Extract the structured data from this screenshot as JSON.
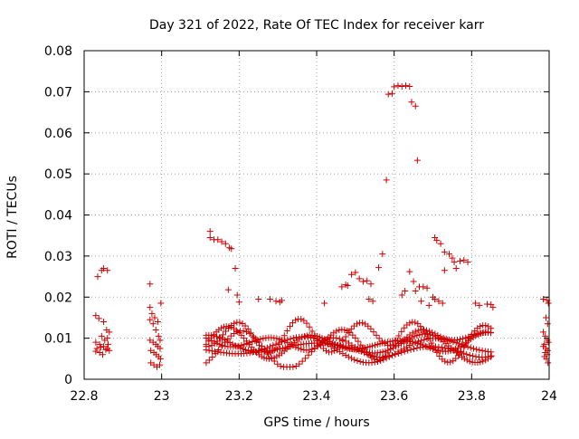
{
  "chart_data": {
    "type": "scatter",
    "title": "Day 321 of 2022, Rate Of TEC Index for receiver karr",
    "xlabel": "GPS time / hours",
    "ylabel": "ROTI / TECUs",
    "xlim": [
      22.8,
      24
    ],
    "ylim": [
      0,
      0.08
    ],
    "x_ticks": [
      "22.8",
      "23",
      "23.2",
      "23.4",
      "23.6",
      "23.8",
      "24"
    ],
    "y_ticks": [
      "0",
      "0.01",
      "0.02",
      "0.03",
      "0.04",
      "0.05",
      "0.06",
      "0.07",
      "0.08"
    ],
    "x_tick_values": [
      22.8,
      23.0,
      23.2,
      23.4,
      23.6,
      23.8,
      24.0
    ],
    "y_tick_values": [
      0,
      0.01,
      0.02,
      0.03,
      0.04,
      0.05,
      0.06,
      0.07,
      0.08
    ],
    "grid": true,
    "marker": "+",
    "color": "#cc0000",
    "series": [
      {
        "points": [
          [
            22.835,
            0.025
          ],
          [
            22.845,
            0.0265
          ],
          [
            22.85,
            0.027
          ],
          [
            22.86,
            0.0265
          ],
          [
            22.83,
            0.0155
          ],
          [
            22.838,
            0.0148
          ],
          [
            22.85,
            0.014
          ],
          [
            22.858,
            0.012
          ],
          [
            22.865,
            0.0115
          ],
          [
            22.83,
            0.009
          ],
          [
            22.84,
            0.0085
          ],
          [
            22.85,
            0.008
          ],
          [
            22.86,
            0.0075
          ],
          [
            22.865,
            0.007
          ],
          [
            22.83,
            0.0068
          ],
          [
            22.84,
            0.0065
          ],
          [
            22.848,
            0.006
          ],
          [
            22.856,
            0.0072
          ],
          [
            22.862,
            0.0085
          ],
          [
            22.833,
            0.0075
          ],
          [
            22.843,
            0.0078
          ],
          [
            22.853,
            0.0095
          ],
          [
            22.86,
            0.01
          ],
          [
            22.845,
            0.0105
          ],
          [
            22.97,
            0.0232
          ],
          [
            22.97,
            0.0175
          ],
          [
            22.975,
            0.016
          ],
          [
            22.982,
            0.015
          ],
          [
            22.99,
            0.014
          ],
          [
            22.998,
            0.0185
          ],
          [
            22.97,
            0.0145
          ],
          [
            22.978,
            0.0135
          ],
          [
            22.985,
            0.012
          ],
          [
            22.992,
            0.0105
          ],
          [
            22.996,
            0.0095
          ],
          [
            22.97,
            0.0095
          ],
          [
            22.978,
            0.009
          ],
          [
            22.985,
            0.0085
          ],
          [
            22.99,
            0.008
          ],
          [
            22.996,
            0.0075
          ],
          [
            22.972,
            0.007
          ],
          [
            22.98,
            0.0065
          ],
          [
            22.986,
            0.006
          ],
          [
            22.992,
            0.0055
          ],
          [
            22.997,
            0.005
          ],
          [
            22.972,
            0.004
          ],
          [
            22.98,
            0.0035
          ],
          [
            22.988,
            0.003
          ],
          [
            22.995,
            0.0035
          ],
          [
            23.125,
            0.036
          ],
          [
            23.125,
            0.0345
          ],
          [
            23.135,
            0.034
          ],
          [
            23.145,
            0.034
          ],
          [
            23.155,
            0.0335
          ],
          [
            23.165,
            0.033
          ],
          [
            23.175,
            0.032
          ],
          [
            23.18,
            0.0318
          ],
          [
            23.19,
            0.027
          ],
          [
            23.172,
            0.0218
          ],
          [
            23.195,
            0.0205
          ],
          [
            23.2,
            0.0188
          ],
          [
            23.25,
            0.0195
          ],
          [
            23.28,
            0.0195
          ],
          [
            23.295,
            0.019
          ],
          [
            23.305,
            0.0188
          ],
          [
            23.31,
            0.0192
          ],
          [
            23.6,
            0.0712
          ],
          [
            23.61,
            0.0715
          ],
          [
            23.62,
            0.0713
          ],
          [
            23.63,
            0.0715
          ],
          [
            23.64,
            0.0713
          ],
          [
            23.585,
            0.0694
          ],
          [
            23.595,
            0.0696
          ],
          [
            23.645,
            0.0675
          ],
          [
            23.655,
            0.0665
          ],
          [
            23.66,
            0.0533
          ],
          [
            23.58,
            0.0485
          ],
          [
            23.57,
            0.0305
          ],
          [
            23.56,
            0.0272
          ],
          [
            23.705,
            0.0345
          ],
          [
            23.71,
            0.0338
          ],
          [
            23.72,
            0.033
          ],
          [
            23.73,
            0.031
          ],
          [
            23.742,
            0.0305
          ],
          [
            23.75,
            0.0295
          ],
          [
            23.755,
            0.0285
          ],
          [
            23.76,
            0.027
          ],
          [
            23.77,
            0.0288
          ],
          [
            23.78,
            0.029
          ],
          [
            23.79,
            0.0285
          ],
          [
            23.73,
            0.0265
          ],
          [
            23.64,
            0.0262
          ],
          [
            23.65,
            0.0238
          ],
          [
            23.655,
            0.0215
          ],
          [
            23.665,
            0.0225
          ],
          [
            23.67,
            0.019
          ],
          [
            23.675,
            0.0225
          ],
          [
            23.685,
            0.0222
          ],
          [
            23.62,
            0.0205
          ],
          [
            23.628,
            0.0215
          ],
          [
            23.49,
            0.0255
          ],
          [
            23.5,
            0.026
          ],
          [
            23.51,
            0.0245
          ],
          [
            23.52,
            0.0238
          ],
          [
            23.53,
            0.024
          ],
          [
            23.54,
            0.0232
          ],
          [
            23.475,
            0.023
          ],
          [
            23.48,
            0.0228
          ],
          [
            23.465,
            0.0225
          ],
          [
            23.42,
            0.0185
          ],
          [
            23.535,
            0.0195
          ],
          [
            23.545,
            0.019
          ],
          [
            23.69,
            0.018
          ],
          [
            23.7,
            0.02
          ],
          [
            23.705,
            0.0195
          ],
          [
            23.715,
            0.019
          ],
          [
            23.725,
            0.0185
          ],
          [
            23.81,
            0.0185
          ],
          [
            23.82,
            0.018
          ],
          [
            23.84,
            0.0183
          ],
          [
            23.85,
            0.0182
          ],
          [
            23.855,
            0.0175
          ],
          [
            23.985,
            0.0195
          ],
          [
            23.995,
            0.0192
          ],
          [
            23.998,
            0.0185
          ],
          [
            23.992,
            0.015
          ],
          [
            23.996,
            0.0135
          ],
          [
            23.985,
            0.0115
          ],
          [
            23.99,
            0.0105
          ],
          [
            23.995,
            0.0095
          ],
          [
            23.998,
            0.009
          ],
          [
            23.988,
            0.0085
          ],
          [
            23.985,
            0.008
          ],
          [
            23.992,
            0.0075
          ],
          [
            23.996,
            0.007
          ],
          [
            23.99,
            0.0065
          ],
          [
            23.995,
            0.006
          ],
          [
            23.988,
            0.0055
          ],
          [
            23.993,
            0.005
          ],
          [
            23.997,
            0.004
          ]
        ]
      }
    ],
    "bands": [
      {
        "x0": 23.115,
        "x1": 23.855,
        "phase": 0.0,
        "amp": 0.0045,
        "base": 0.0085,
        "freq": 21,
        "step": 0.0065
      },
      {
        "x0": 23.115,
        "x1": 23.855,
        "phase": 1.3,
        "amp": 0.004,
        "base": 0.008,
        "freq": 17,
        "step": 0.0068
      },
      {
        "x0": 23.115,
        "x1": 23.855,
        "phase": 2.4,
        "amp": 0.005,
        "base": 0.009,
        "freq": 25,
        "step": 0.007
      },
      {
        "x0": 23.115,
        "x1": 23.855,
        "phase": 3.6,
        "amp": 0.0035,
        "base": 0.0075,
        "freq": 13,
        "step": 0.0075
      },
      {
        "x0": 23.115,
        "x1": 23.855,
        "phase": 4.7,
        "amp": 0.0042,
        "base": 0.0105,
        "freq": 29,
        "step": 0.0072
      },
      {
        "x0": 23.115,
        "x1": 23.855,
        "phase": 5.5,
        "amp": 0.0048,
        "base": 0.007,
        "freq": 19,
        "step": 0.008
      }
    ]
  }
}
